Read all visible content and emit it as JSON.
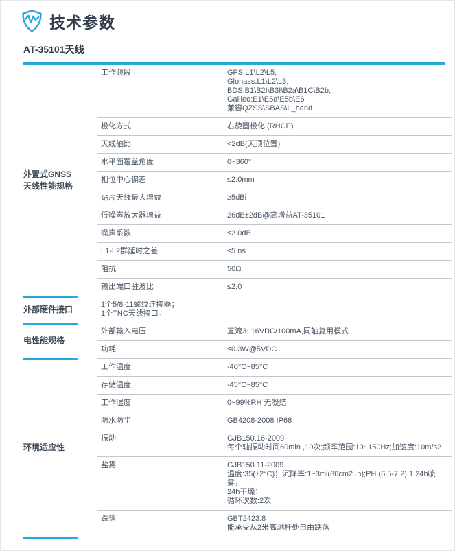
{
  "header": {
    "title": "技术参数",
    "icon": "shield-pulse-icon"
  },
  "product_title": "AT-35101天线",
  "colors": {
    "accent_blue": "#29a7df",
    "title_text": "#333f4d",
    "category_text": "#3d4a59",
    "body_text": "#4b5665",
    "separator_gray": "#c3c7cb"
  },
  "sections": [
    {
      "category": "外置式GNSS\n天线性能规格",
      "rows": [
        {
          "param": "工作频段",
          "value": "GPS:L1\\L2\\L5;\nGlonass:L1\\L2\\L3;\nBDS:B1\\B2I\\B3I\\B2a\\B1C\\B2b;\nGalileo:E1\\E5a\\E5b\\E6\n兼容QZSS\\SBAS\\L_band"
        },
        {
          "param": "极化方式",
          "value": "右旋圆极化 (RHCP)"
        },
        {
          "param": "天线轴比",
          "value": "<2dB(天顶位置)"
        },
        {
          "param": "水平面覆盖角度",
          "value": "0~360°"
        },
        {
          "param": "相位中心偏差",
          "value": "≤2.0mm"
        },
        {
          "param": "贴片天线最大增益",
          "value": "≥5dBi"
        },
        {
          "param": "低噪声放大器增益",
          "value": "26dB±2dB@高增益AT-35101"
        },
        {
          "param": "噪声系数",
          "value": "≤2.0dB"
        },
        {
          "param": "L1-L2群延时之差",
          "value": "≤5 ns"
        },
        {
          "param": "阻抗",
          "value": "50Ω"
        },
        {
          "param": "输出端口驻波比",
          "value": "≤2.0"
        }
      ]
    },
    {
      "category": "外部硬件接口",
      "rows": [
        {
          "param": "1个5/8-11螺纹连接器；\n1个TNC天线接口。",
          "value": ""
        }
      ]
    },
    {
      "category": "电性能规格",
      "rows": [
        {
          "param": "外部输入电压",
          "value": "直流3~16VDC/100mA,同轴复用模式"
        },
        {
          "param": "功耗",
          "value": "≤0.3W@5VDC"
        }
      ]
    },
    {
      "category": "环境适应性",
      "rows": [
        {
          "param": "工作温度",
          "value": "-40°C~85°C"
        },
        {
          "param": "存储温度",
          "value": "-45°C~85°C"
        },
        {
          "param": "工作湿度",
          "value": "0~99%RH 无凝结"
        },
        {
          "param": "防水防尘",
          "value": "GB4208-2008  IP68"
        },
        {
          "param": "振动",
          "value": "GJB150.16-2009\n每个轴振动时间60min ,10次;频率范围:10~150Hz;加速度:10m/s2"
        },
        {
          "param": "盐雾",
          "value": "GJB150.11-2009\n温度:35(±2°C)；沉降率:1~3ml(80cm2..h);PH (6.5-7.2) 1.24h喷雾，\n24h干燥；\n循环次数:2次"
        },
        {
          "param": "跌落",
          "value": "GBT2423.8\n能承受从2米高测杆处自由跌落"
        }
      ]
    }
  ]
}
